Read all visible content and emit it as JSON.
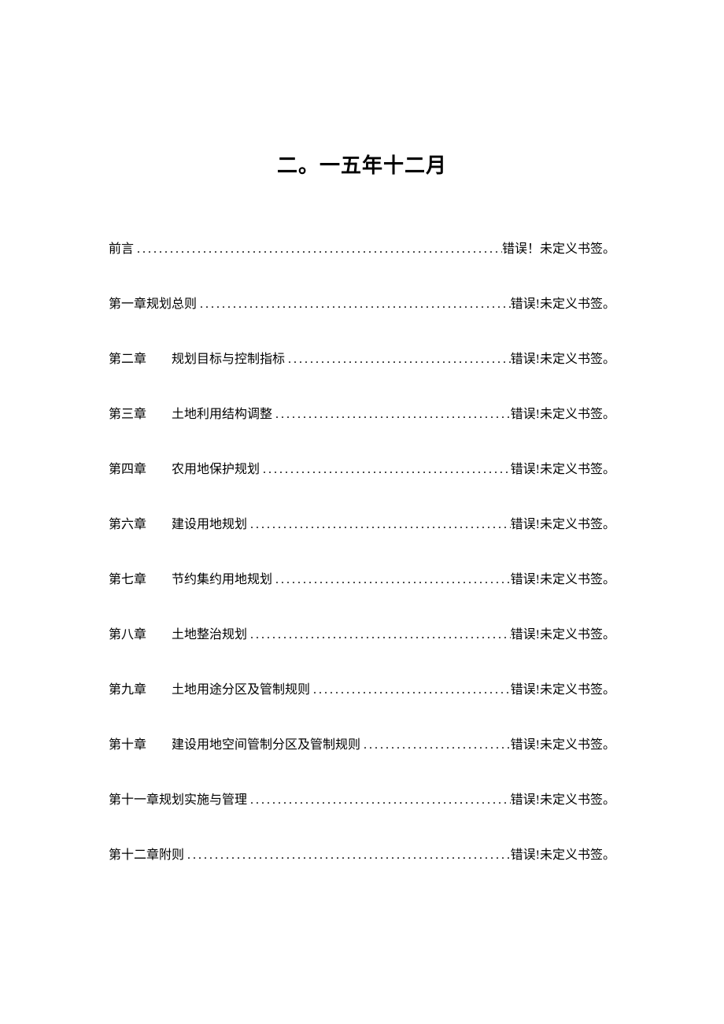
{
  "title": "二。一五年十二月",
  "toc": {
    "error_text": "错误！未定义书签。",
    "error_text_compact": "错误!未定义书签。",
    "items": [
      {
        "chapter": "前言",
        "gap": "",
        "label": "",
        "page_key": "error_text"
      },
      {
        "chapter": "第一章规划总则",
        "gap": "",
        "label": "",
        "page_key": "error_text_compact"
      },
      {
        "chapter": "第二章",
        "gap": "　　",
        "label": "规划目标与控制指标",
        "page_key": "error_text_compact"
      },
      {
        "chapter": "第三章",
        "gap": "　　",
        "label": "土地利用结构调整",
        "page_key": "error_text_compact"
      },
      {
        "chapter": "第四章",
        "gap": "　　",
        "label": "农用地保护规划",
        "page_key": "error_text_compact"
      },
      {
        "chapter": "第六章",
        "gap": "　　",
        "label": "建设用地规划",
        "page_key": "error_text_compact"
      },
      {
        "chapter": "第七章",
        "gap": "　　",
        "label": "节约集约用地规划",
        "page_key": "error_text_compact"
      },
      {
        "chapter": "第八章",
        "gap": "　　",
        "label": "土地整治规划",
        "page_key": "error_text_compact"
      },
      {
        "chapter": "第九章",
        "gap": "　　",
        "label": "土地用途分区及管制规则",
        "page_key": "error_text_compact"
      },
      {
        "chapter": "第十章",
        "gap": "　　",
        "label": "建设用地空间管制分区及管制规则",
        "page_key": "error_text_compact"
      },
      {
        "chapter": "第十一章规划实施与管理",
        "gap": "",
        "label": "",
        "page_key": "error_text_compact"
      },
      {
        "chapter": "第十二章附则",
        "gap": "",
        "label": "",
        "page_key": "error_text_compact"
      }
    ]
  },
  "styling": {
    "background_color": "#ffffff",
    "text_color": "#000000",
    "title_fontsize": 26,
    "body_fontsize": 16,
    "row_spacing": 46,
    "dot_letter_spacing": 3,
    "font_family": "SimSun"
  }
}
